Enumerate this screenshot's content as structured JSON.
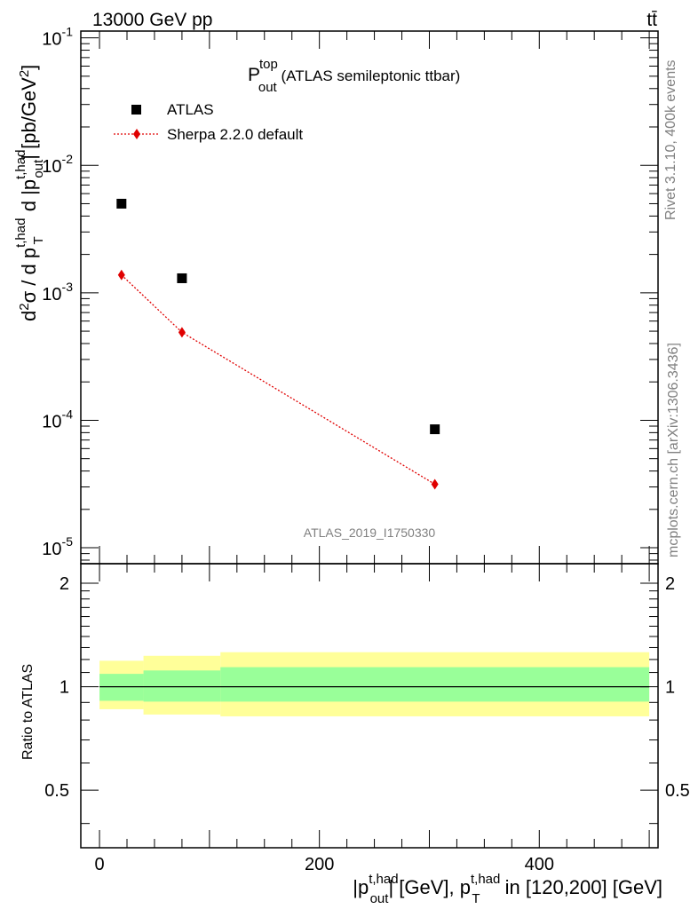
{
  "header": {
    "left": "13000 GeV pp",
    "right_main": "tt",
    "right_bar": "̄"
  },
  "plot_title": {
    "main": "P",
    "sup": "top",
    "sub": "out",
    "rest": " (ATLAS semileptonic ttbar)"
  },
  "watermark": "ATLAS_2019_I1750330",
  "side_labels": {
    "rivet": "Rivet 3.1.10,  400k events",
    "mcplots": "mcplots.cern.ch [arXiv:1306.3436]"
  },
  "axes": {
    "ylabel_main": {
      "p1": "d",
      "p1sup": "2",
      "p2": "σ / d p",
      "p2sup": "t,had",
      "p2sub": "T",
      "p3": " d |p",
      "p3sup": "t,had",
      "p3sub": "out",
      "p4": "| [pb/GeV",
      "p4sup": "2",
      "p5": "]"
    },
    "ylabel_ratio": "Ratio to ATLAS",
    "xlabel": {
      "p1": "|p",
      "p1sup": "t,had",
      "p1sub": "out",
      "p2": "| [GeV], p",
      "p2sup": "t,had",
      "p2sub": "T",
      "p3": " in [120,200] [GeV]"
    },
    "main_yticks": [
      {
        "base": "10",
        "exp": "-1",
        "value": 0.1
      },
      {
        "base": "10",
        "exp": "-2",
        "value": 0.01
      },
      {
        "base": "10",
        "exp": "-3",
        "value": 0.001
      },
      {
        "base": "10",
        "exp": "-4",
        "value": 0.0001
      },
      {
        "base": "10",
        "exp": "-5",
        "value": 1e-05
      }
    ],
    "ratio_yticks": [
      {
        "label": "2",
        "value": 2
      },
      {
        "label": "1",
        "value": 1
      },
      {
        "label": "0.5",
        "value": 0.5
      }
    ],
    "xticks": [
      {
        "label": "0",
        "value": 0
      },
      {
        "label": "200",
        "value": 200
      },
      {
        "label": "400",
        "value": 400
      }
    ]
  },
  "legend": [
    {
      "label": "ATLAS",
      "color": "#000000",
      "marker": "square"
    },
    {
      "label": "Sherpa 2.2.0 default",
      "color": "#e00000",
      "marker": "diamond"
    }
  ],
  "chart_data": {
    "type": "scatter",
    "x_range": [
      -17,
      508
    ],
    "main_y_range": [
      7.5e-06,
      0.113
    ],
    "main_y_scale": "log",
    "ratio_y_range": [
      0.34,
      2.28
    ],
    "ratio_y_scale": "log",
    "series": [
      {
        "name": "ATLAS",
        "marker": "square",
        "color": "#000000",
        "x": [
          20,
          75,
          305
        ],
        "y": [
          0.005,
          0.0013,
          8.5e-05
        ]
      },
      {
        "name": "Sherpa 2.2.0 default",
        "marker": "diamond",
        "color": "#e00000",
        "line": "dotted",
        "x": [
          20,
          75,
          305
        ],
        "y": [
          0.00138,
          0.00049,
          3.15e-05
        ]
      }
    ],
    "ratio_reference": 1,
    "ratio_bands": [
      {
        "x": [
          0,
          40
        ],
        "inner": [
          0.91,
          1.09
        ],
        "outer": [
          0.86,
          1.19
        ]
      },
      {
        "x": [
          40,
          110
        ],
        "inner": [
          0.905,
          1.115
        ],
        "outer": [
          0.83,
          1.23
        ]
      },
      {
        "x": [
          110,
          500
        ],
        "inner": [
          0.905,
          1.14
        ],
        "outer": [
          0.82,
          1.26
        ]
      }
    ],
    "band_colors": {
      "inner": "#99ff99",
      "outer": "#ffff99"
    }
  }
}
